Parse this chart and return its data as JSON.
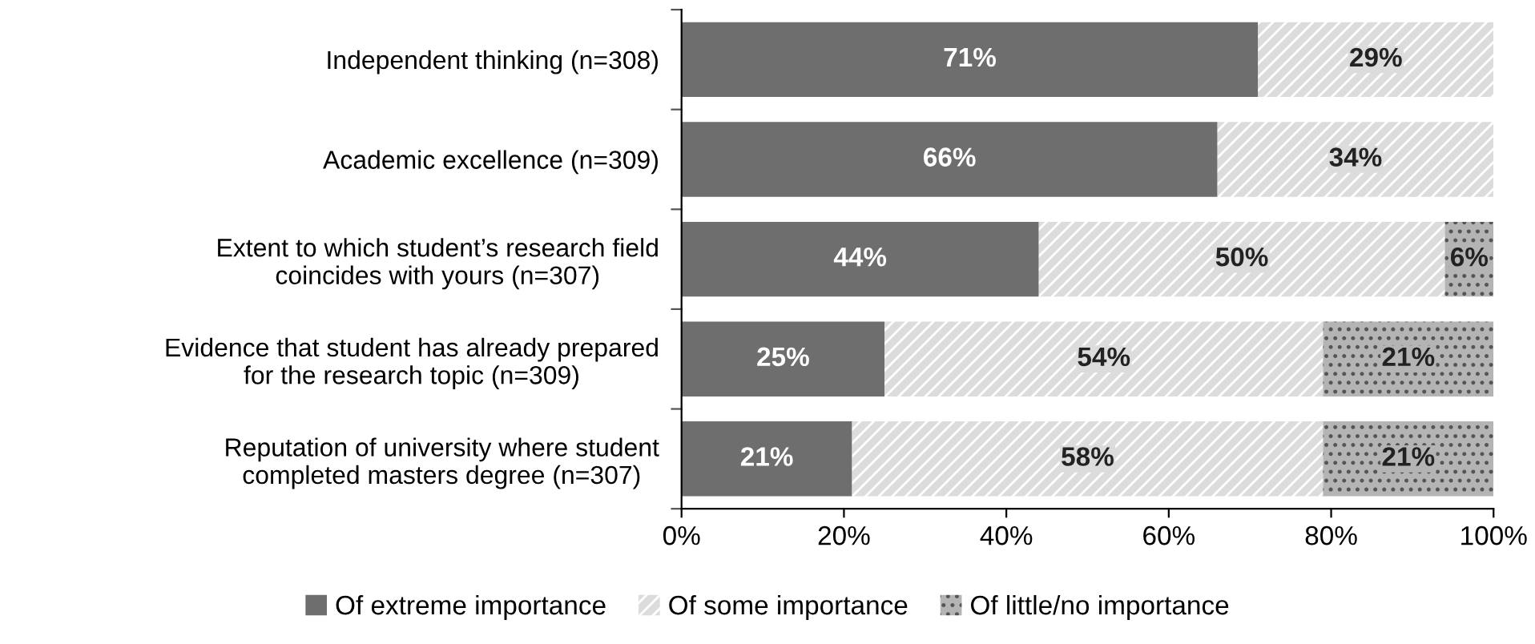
{
  "chart_data": {
    "type": "bar",
    "orientation": "horizontal",
    "stacked": true,
    "categories": [
      "Independent thinking (n=308)",
      "Academic excellence (n=309)",
      "Extent to which student’s research field\ncoincides with yours (n=307)",
      "Evidence that student has already prepared\nfor the research topic (n=309)",
      "Reputation of university where student\ncompleted masters degree (n=307)"
    ],
    "series": [
      {
        "name": "Of extreme importance",
        "color": "#6e6e6e",
        "values": [
          71,
          66,
          44,
          25,
          21
        ],
        "value_labels": [
          "71%",
          "66%",
          "44%",
          "25%",
          "21%"
        ]
      },
      {
        "name": "Of some importance",
        "color": "#dcdcdc",
        "values": [
          29,
          34,
          50,
          54,
          58
        ],
        "value_labels": [
          "29%",
          "34%",
          "50%",
          "54%",
          "58%"
        ]
      },
      {
        "name": "Of little/no importance",
        "color": "#b4b4b4",
        "values": [
          null,
          null,
          6,
          21,
          21
        ],
        "value_labels": [
          null,
          null,
          "6%",
          "21%",
          "21%"
        ]
      }
    ],
    "xlim": [
      0,
      100
    ],
    "xticks": [
      {
        "value": 0,
        "label": "0%"
      },
      {
        "value": 20,
        "label": "20%"
      },
      {
        "value": 40,
        "label": "40%"
      },
      {
        "value": 60,
        "label": "60%"
      },
      {
        "value": 80,
        "label": "80%"
      },
      {
        "value": 100,
        "label": "100%"
      }
    ],
    "grid": false,
    "legend": "bottom"
  }
}
